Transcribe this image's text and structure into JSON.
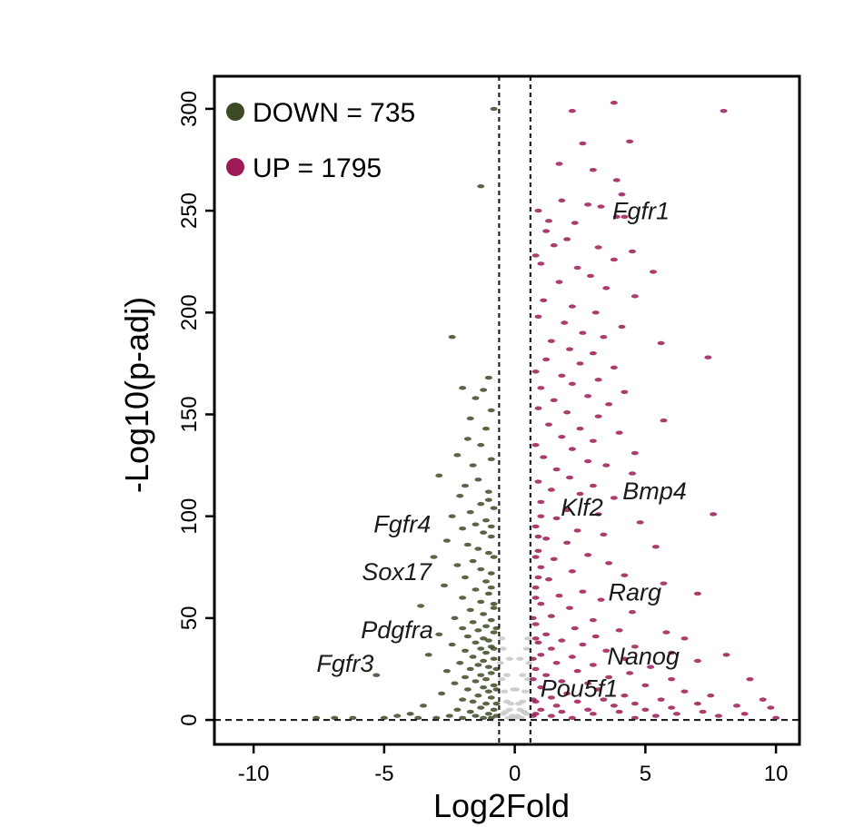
{
  "chart_data": {
    "type": "scatter",
    "xlabel": "Log2Fold",
    "ylabel": "-Log10(p-adj)",
    "xlim": [
      -11.5,
      10.9
    ],
    "ylim": [
      -12,
      316
    ],
    "xticks": [
      -10,
      -5,
      0,
      5,
      10
    ],
    "yticks": [
      0,
      50,
      100,
      150,
      200,
      250,
      300
    ],
    "fold_thresholds": [
      -0.6,
      0.6
    ],
    "pvalue_threshold": 0,
    "legend_position": "top-left",
    "legend": [
      {
        "label": "DOWN = 735",
        "color": "#3d4a26"
      },
      {
        "label": "UP = 1795",
        "color": "#9c1b55"
      }
    ],
    "colors": {
      "down": "#3d4a26",
      "up": "#9c1b55",
      "ns": "#c8c8c8"
    },
    "labeled_genes": [
      {
        "name": "Fgfr1",
        "x": 5.3,
        "y": 220
      },
      {
        "name": "Bmp4",
        "x": 4.3,
        "y": 103
      },
      {
        "name": "Klf2",
        "x": 3.5,
        "y": 98
      },
      {
        "name": "Fgfr4",
        "x": -1.3,
        "y": 92
      },
      {
        "name": "Sox17",
        "x": -1.4,
        "y": 74
      },
      {
        "name": "Rarg",
        "x": 4.1,
        "y": 55
      },
      {
        "name": "Pdgfra",
        "x": -1.3,
        "y": 38
      },
      {
        "name": "Nanog",
        "x": 5.0,
        "y": 25
      },
      {
        "name": "Fgfr3",
        "x": -3.0,
        "y": 20
      },
      {
        "name": "Pou5f1",
        "x": 1.5,
        "y": 10
      }
    ],
    "down_points": [
      [
        -0.8,
        300
      ],
      [
        -1.3,
        262
      ],
      [
        -2.4,
        188
      ],
      [
        -2.0,
        163
      ],
      [
        -1.2,
        162
      ],
      [
        -1.0,
        168
      ],
      [
        -1.5,
        158
      ],
      [
        -0.9,
        152
      ],
      [
        -1.7,
        148
      ],
      [
        -1.1,
        143
      ],
      [
        -1.8,
        138
      ],
      [
        -1.3,
        135
      ],
      [
        -2.2,
        130
      ],
      [
        -0.9,
        128
      ],
      [
        -1.6,
        125
      ],
      [
        -2.9,
        120
      ],
      [
        -1.4,
        118
      ],
      [
        -1.9,
        115
      ],
      [
        -1.0,
        112
      ],
      [
        -2.1,
        110
      ],
      [
        -1.3,
        106
      ],
      [
        -0.8,
        104
      ],
      [
        -1.7,
        102
      ],
      [
        -2.4,
        100
      ],
      [
        -1.1,
        98
      ],
      [
        -1.5,
        96
      ],
      [
        -2.0,
        94
      ],
      [
        -1.2,
        92
      ],
      [
        -0.9,
        90
      ],
      [
        -2.6,
        88
      ],
      [
        -1.8,
        86
      ],
      [
        -1.4,
        84
      ],
      [
        -1.0,
        82
      ],
      [
        -3.1,
        80
      ],
      [
        -1.6,
        78
      ],
      [
        -2.2,
        76
      ],
      [
        -1.3,
        74
      ],
      [
        -0.9,
        72
      ],
      [
        -1.9,
        70
      ],
      [
        -1.1,
        68
      ],
      [
        -2.7,
        66
      ],
      [
        -1.5,
        64
      ],
      [
        -1.0,
        62
      ],
      [
        -2.0,
        60
      ],
      [
        -1.3,
        58
      ],
      [
        -0.8,
        57
      ],
      [
        -3.6,
        56
      ],
      [
        -1.7,
        54
      ],
      [
        -1.2,
        52
      ],
      [
        -2.3,
        50
      ],
      [
        -0.9,
        49
      ],
      [
        -1.6,
        48
      ],
      [
        -1.1,
        46
      ],
      [
        -2.0,
        45
      ],
      [
        -1.4,
        44
      ],
      [
        -0.8,
        43
      ],
      [
        -2.9,
        42
      ],
      [
        -1.8,
        41
      ],
      [
        -1.2,
        40
      ],
      [
        -1.0,
        39
      ],
      [
        -1.5,
        38
      ],
      [
        -2.4,
        37
      ],
      [
        -0.9,
        36
      ],
      [
        -1.3,
        35
      ],
      [
        -1.9,
        34
      ],
      [
        -1.1,
        33
      ],
      [
        -3.3,
        32
      ],
      [
        -1.6,
        31
      ],
      [
        -0.8,
        30
      ],
      [
        -1.2,
        29
      ],
      [
        -2.1,
        28
      ],
      [
        -1.4,
        27
      ],
      [
        -1.0,
        26
      ],
      [
        -1.7,
        25
      ],
      [
        -2.6,
        24
      ],
      [
        -0.9,
        23
      ],
      [
        -1.3,
        22
      ],
      [
        -5.3,
        22
      ],
      [
        -1.9,
        21
      ],
      [
        -1.1,
        20
      ],
      [
        -1.5,
        19
      ],
      [
        -2.3,
        18
      ],
      [
        -0.8,
        17
      ],
      [
        -1.2,
        16
      ],
      [
        -1.8,
        15
      ],
      [
        -1.0,
        14
      ],
      [
        -2.8,
        13
      ],
      [
        -1.4,
        12
      ],
      [
        -0.9,
        11
      ],
      [
        -2.0,
        10
      ],
      [
        -1.6,
        9
      ],
      [
        -1.1,
        8
      ],
      [
        -3.5,
        7
      ],
      [
        -1.3,
        6
      ],
      [
        -0.8,
        5
      ],
      [
        -2.2,
        5
      ],
      [
        -1.7,
        4
      ],
      [
        -1.0,
        3
      ],
      [
        -4.0,
        3
      ],
      [
        -1.5,
        2
      ],
      [
        -2.5,
        2
      ],
      [
        -0.9,
        1
      ],
      [
        -5.0,
        1
      ],
      [
        -3.0,
        1
      ],
      [
        -6.2,
        1
      ],
      [
        -6.9,
        1
      ],
      [
        -7.6,
        1
      ],
      [
        -4.5,
        2
      ],
      [
        -3.7,
        1
      ],
      [
        -2.0,
        1
      ],
      [
        -1.2,
        1
      ],
      [
        -0.7,
        2
      ],
      [
        -0.7,
        8
      ],
      [
        -0.7,
        15
      ],
      [
        -0.7,
        25
      ],
      [
        -0.8,
        35
      ],
      [
        -0.7,
        45
      ],
      [
        -0.8,
        55
      ],
      [
        -0.9,
        65
      ],
      [
        -0.8,
        80
      ],
      [
        -0.9,
        95
      ],
      [
        -1.0,
        108
      ]
    ],
    "up_points": [
      [
        3.8,
        303
      ],
      [
        8.0,
        299
      ],
      [
        2.2,
        299
      ],
      [
        4.4,
        284
      ],
      [
        2.6,
        283
      ],
      [
        1.7,
        273
      ],
      [
        3.0,
        270
      ],
      [
        3.9,
        265
      ],
      [
        4.1,
        258
      ],
      [
        1.8,
        255
      ],
      [
        2.8,
        253
      ],
      [
        3.3,
        252
      ],
      [
        0.9,
        250
      ],
      [
        3.9,
        247
      ],
      [
        4.2,
        247
      ],
      [
        1.3,
        245
      ],
      [
        2.3,
        244
      ],
      [
        1.2,
        240
      ],
      [
        2.0,
        236
      ],
      [
        1.5,
        233
      ],
      [
        3.2,
        232
      ],
      [
        4.5,
        230
      ],
      [
        0.8,
        228
      ],
      [
        3.8,
        226
      ],
      [
        1.0,
        224
      ],
      [
        2.4,
        222
      ],
      [
        5.3,
        220
      ],
      [
        2.9,
        218
      ],
      [
        1.7,
        215
      ],
      [
        3.5,
        212
      ],
      [
        4.6,
        208
      ],
      [
        1.1,
        206
      ],
      [
        2.2,
        203
      ],
      [
        3.1,
        200
      ],
      [
        0.9,
        198
      ],
      [
        1.9,
        195
      ],
      [
        4.1,
        193
      ],
      [
        2.6,
        190
      ],
      [
        3.4,
        188
      ],
      [
        1.4,
        186
      ],
      [
        5.6,
        185
      ],
      [
        2.1,
        182
      ],
      [
        3.0,
        180
      ],
      [
        7.4,
        178
      ],
      [
        1.2,
        177
      ],
      [
        2.5,
        175
      ],
      [
        3.8,
        173
      ],
      [
        0.8,
        171
      ],
      [
        1.8,
        169
      ],
      [
        3.2,
        167
      ],
      [
        2.2,
        165
      ],
      [
        1.0,
        163
      ],
      [
        4.2,
        161
      ],
      [
        2.8,
        159
      ],
      [
        1.5,
        157
      ],
      [
        3.6,
        155
      ],
      [
        0.9,
        153
      ],
      [
        2.0,
        151
      ],
      [
        3.2,
        149
      ],
      [
        5.7,
        147
      ],
      [
        1.3,
        145
      ],
      [
        2.5,
        143
      ],
      [
        4.0,
        141
      ],
      [
        1.8,
        139
      ],
      [
        3.0,
        137
      ],
      [
        0.8,
        135
      ],
      [
        2.2,
        133
      ],
      [
        4.6,
        131
      ],
      [
        1.1,
        129
      ],
      [
        2.8,
        127
      ],
      [
        3.5,
        125
      ],
      [
        1.6,
        123
      ],
      [
        4.5,
        121
      ],
      [
        2.1,
        119
      ],
      [
        0.9,
        117
      ],
      [
        3.0,
        115
      ],
      [
        1.4,
        113
      ],
      [
        2.5,
        111
      ],
      [
        3.8,
        109
      ],
      [
        1.0,
        107
      ],
      [
        7.6,
        101
      ],
      [
        2.0,
        103
      ],
      [
        3.2,
        101
      ],
      [
        1.6,
        99
      ],
      [
        4.8,
        97
      ],
      [
        0.8,
        95
      ],
      [
        2.4,
        93
      ],
      [
        3.4,
        91
      ],
      [
        1.2,
        89
      ],
      [
        2.0,
        87
      ],
      [
        5.4,
        85
      ],
      [
        0.9,
        83
      ],
      [
        2.8,
        81
      ],
      [
        1.5,
        79
      ],
      [
        3.6,
        77
      ],
      [
        1.0,
        75
      ],
      [
        2.2,
        73
      ],
      [
        4.2,
        71
      ],
      [
        1.3,
        69
      ],
      [
        5.7,
        67
      ],
      [
        0.8,
        65
      ],
      [
        2.6,
        63
      ],
      [
        7.0,
        62
      ],
      [
        1.7,
        61
      ],
      [
        3.3,
        59
      ],
      [
        1.0,
        57
      ],
      [
        2.1,
        55
      ],
      [
        4.5,
        53
      ],
      [
        1.4,
        51
      ],
      [
        3.0,
        49
      ],
      [
        0.8,
        47
      ],
      [
        2.3,
        45
      ],
      [
        4.0,
        44
      ],
      [
        5.8,
        43
      ],
      [
        1.2,
        42
      ],
      [
        3.1,
        41
      ],
      [
        6.5,
        40
      ],
      [
        1.8,
        39
      ],
      [
        0.9,
        38
      ],
      [
        2.6,
        37
      ],
      [
        4.6,
        36
      ],
      [
        1.4,
        35
      ],
      [
        3.5,
        34
      ],
      [
        6.0,
        33
      ],
      [
        1.0,
        32
      ],
      [
        2.2,
        31
      ],
      [
        4.2,
        30
      ],
      [
        7.0,
        29
      ],
      [
        1.6,
        28
      ],
      [
        3.0,
        27
      ],
      [
        5.2,
        26
      ],
      [
        0.8,
        25
      ],
      [
        2.4,
        24
      ],
      [
        4.4,
        23
      ],
      [
        8.1,
        32
      ],
      [
        1.2,
        22
      ],
      [
        3.6,
        21
      ],
      [
        6.0,
        20
      ],
      [
        1.8,
        19
      ],
      [
        2.8,
        18
      ],
      [
        5.0,
        17
      ],
      [
        9.0,
        20
      ],
      [
        1.0,
        16
      ],
      [
        3.2,
        15
      ],
      [
        6.5,
        14
      ],
      [
        2.0,
        13
      ],
      [
        4.2,
        12
      ],
      [
        7.5,
        12
      ],
      [
        1.4,
        11
      ],
      [
        3.4,
        10
      ],
      [
        5.6,
        10
      ],
      [
        9.5,
        10
      ],
      [
        0.8,
        9
      ],
      [
        2.4,
        9
      ],
      [
        4.6,
        8
      ],
      [
        7.0,
        8
      ],
      [
        1.6,
        7
      ],
      [
        3.8,
        7
      ],
      [
        6.0,
        6
      ],
      [
        8.5,
        7
      ],
      [
        1.0,
        5
      ],
      [
        2.8,
        5
      ],
      [
        5.0,
        5
      ],
      [
        9.8,
        6
      ],
      [
        1.8,
        4
      ],
      [
        4.0,
        4
      ],
      [
        7.2,
        4
      ],
      [
        0.8,
        3
      ],
      [
        3.0,
        3
      ],
      [
        6.2,
        3
      ],
      [
        8.8,
        3
      ],
      [
        1.4,
        2
      ],
      [
        5.4,
        2
      ],
      [
        7.8,
        2
      ],
      [
        2.2,
        1
      ],
      [
        4.6,
        1
      ],
      [
        10.0,
        1
      ],
      [
        0.7,
        2
      ],
      [
        0.7,
        10
      ],
      [
        0.7,
        20
      ],
      [
        0.7,
        30
      ],
      [
        0.8,
        40
      ],
      [
        0.7,
        50
      ],
      [
        0.8,
        60
      ],
      [
        0.9,
        70
      ],
      [
        0.8,
        80
      ],
      [
        0.9,
        90
      ],
      [
        1.0,
        100
      ]
    ],
    "ns_points": [
      [
        -0.5,
        20
      ],
      [
        -0.4,
        14
      ],
      [
        -0.3,
        9
      ],
      [
        -0.2,
        5
      ],
      [
        -0.1,
        2
      ],
      [
        0.0,
        1
      ],
      [
        0.1,
        2
      ],
      [
        0.2,
        5
      ],
      [
        0.3,
        9
      ],
      [
        0.4,
        14
      ],
      [
        0.5,
        20
      ],
      [
        -0.55,
        28
      ],
      [
        0.55,
        28
      ],
      [
        -0.45,
        35
      ],
      [
        0.45,
        35
      ],
      [
        -0.35,
        4
      ],
      [
        0.35,
        4
      ],
      [
        -0.25,
        1
      ],
      [
        0.25,
        1
      ],
      [
        -0.5,
        40
      ],
      [
        0.5,
        40
      ],
      [
        -0.15,
        8
      ],
      [
        0.15,
        8
      ],
      [
        -0.05,
        15
      ],
      [
        0.05,
        15
      ],
      [
        -0.45,
        3
      ],
      [
        0.45,
        3
      ],
      [
        -0.3,
        22
      ],
      [
        0.3,
        22
      ],
      [
        -0.2,
        30
      ],
      [
        0.2,
        30
      ]
    ]
  }
}
